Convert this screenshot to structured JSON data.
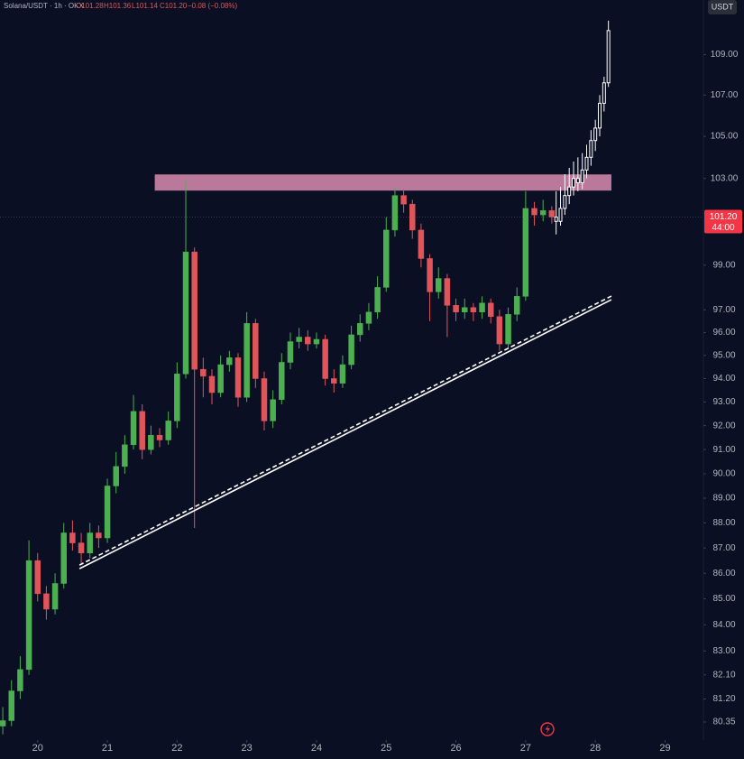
{
  "chart_data": {
    "type": "candlestick",
    "legend": {
      "symbol": "Solana/USDT · 1h · OKX",
      "open": "O101.28",
      "high": "H101.36",
      "low": "L101.14",
      "close": "C101.20",
      "change": "−0.08 (−0.08%)"
    },
    "currency": "USDT",
    "log_scale": true,
    "grid": false,
    "up_color": "#4caf50",
    "down_color": "#e0555a",
    "xlim": [
      19.46,
      29.55
    ],
    "xticks": [
      20,
      21,
      22,
      23,
      24,
      25,
      26,
      27,
      28,
      29
    ],
    "ylim": [
      79.69,
      111.75
    ],
    "yticks": [
      80.35,
      {
        "value": 81.2,
        "label": "81.20"
      },
      {
        "value": 82.1,
        "label": "82.10"
      },
      {
        "value": 83,
        "label": "83.00"
      },
      {
        "value": 84,
        "label": "84.00"
      },
      {
        "value": 85,
        "label": "85.00"
      },
      {
        "value": 86,
        "label": "86.00"
      },
      {
        "value": 87,
        "label": "87.00"
      },
      {
        "value": 88,
        "label": "88.00"
      },
      {
        "value": 89,
        "label": "89.00"
      },
      {
        "value": 90,
        "label": "90.00"
      },
      {
        "value": 91,
        "label": "91.00"
      },
      {
        "value": 92,
        "label": "92.00"
      },
      {
        "value": 93,
        "label": "93.00"
      },
      {
        "value": 94,
        "label": "94.00"
      },
      {
        "value": 95,
        "label": "95.00"
      },
      {
        "value": 96,
        "label": "96.00"
      },
      {
        "value": 97,
        "label": "97.00"
      },
      {
        "value": 99,
        "label": "99.00"
      },
      {
        "value": 103,
        "label": "103.00"
      },
      {
        "value": 105,
        "label": "105.00"
      },
      {
        "value": 107,
        "label": "107.00"
      },
      {
        "value": 109,
        "label": "109.00"
      }
    ],
    "last_price": {
      "value": 101.2,
      "label": "101.20",
      "color": "#f23645"
    },
    "countdown": "44:00",
    "candles": {
      "x": [
        19.5,
        19.625,
        19.75,
        19.875,
        20.0,
        20.125,
        20.25,
        20.375,
        20.5,
        20.625,
        20.75,
        20.875,
        21.0,
        21.125,
        21.25,
        21.375,
        21.5,
        21.625,
        21.75,
        21.875,
        22.0,
        22.125,
        22.25,
        22.375,
        22.5,
        22.625,
        22.75,
        22.875,
        23.0,
        23.125,
        23.25,
        23.375,
        23.5,
        23.625,
        23.75,
        23.875,
        24.0,
        24.125,
        24.25,
        24.375,
        24.5,
        24.625,
        24.75,
        24.875,
        25.0,
        25.125,
        25.25,
        25.375,
        25.5,
        25.625,
        25.75,
        25.875,
        26.0,
        26.125,
        26.25,
        26.375,
        26.5,
        26.625,
        26.75,
        26.875,
        27.0,
        27.125,
        27.25,
        27.375
      ],
      "open": [
        80.2,
        80.4,
        81.5,
        82.3,
        86.5,
        85.2,
        84.6,
        85.6,
        87.6,
        87.2,
        86.8,
        87.6,
        87.4,
        89.5,
        90.3,
        91.2,
        92.6,
        91.0,
        91.6,
        91.4,
        92.2,
        94.2,
        99.6,
        94.4,
        94.1,
        93.4,
        94.6,
        94.9,
        93.2,
        96.4,
        94.0,
        92.2,
        93.1,
        94.7,
        95.6,
        95.8,
        95.5,
        95.7,
        94.0,
        93.8,
        94.6,
        95.9,
        96.4,
        96.9,
        98.0,
        100.6,
        102.2,
        101.8,
        100.6,
        99.3,
        97.8,
        98.4,
        97.2,
        96.9,
        97.1,
        96.9,
        97.3,
        96.7,
        95.5,
        96.8,
        97.6,
        101.6,
        101.3,
        101.5
      ],
      "high": [
        80.9,
        81.9,
        82.8,
        87.3,
        86.8,
        85.5,
        86.0,
        88.0,
        88.1,
        87.6,
        88.0,
        87.9,
        89.8,
        90.9,
        91.6,
        93.3,
        92.9,
        92.0,
        91.9,
        92.6,
        94.7,
        102.9,
        99.8,
        94.9,
        94.4,
        95.0,
        95.2,
        95.1,
        96.9,
        96.6,
        94.3,
        93.5,
        95.1,
        96.0,
        96.2,
        96.1,
        96.0,
        95.9,
        94.4,
        95.0,
        96.3,
        96.8,
        97.3,
        98.5,
        101.2,
        102.6,
        102.5,
        102.0,
        100.9,
        99.5,
        98.9,
        98.6,
        97.5,
        97.5,
        97.3,
        97.6,
        97.5,
        97.0,
        97.1,
        98.0,
        102.4,
        101.9,
        102.0,
        101.7
      ],
      "low": [
        79.9,
        80.2,
        81.2,
        82.1,
        84.9,
        84.2,
        84.4,
        85.4,
        86.9,
        86.4,
        86.6,
        87.0,
        87.2,
        89.2,
        90.0,
        91.0,
        90.6,
        90.8,
        91.1,
        91.2,
        91.9,
        94.0,
        87.8,
        93.2,
        92.9,
        93.2,
        94.3,
        92.8,
        93.0,
        93.6,
        91.8,
        91.9,
        92.9,
        94.4,
        95.3,
        95.2,
        95.3,
        93.7,
        93.4,
        93.6,
        94.4,
        95.6,
        96.1,
        96.6,
        97.8,
        100.3,
        101.4,
        100.2,
        98.9,
        96.5,
        97.5,
        95.8,
        96.5,
        96.6,
        96.5,
        96.6,
        96.4,
        95.2,
        95.3,
        96.5,
        97.4,
        100.8,
        101.0,
        100.9
      ],
      "close": [
        80.4,
        81.5,
        82.3,
        86.5,
        85.2,
        84.6,
        85.6,
        87.6,
        87.2,
        86.8,
        87.6,
        87.4,
        89.5,
        90.3,
        91.2,
        92.6,
        91.0,
        91.6,
        91.4,
        92.2,
        94.2,
        99.6,
        94.4,
        94.1,
        93.4,
        94.6,
        94.9,
        93.2,
        96.4,
        94.0,
        92.2,
        93.1,
        94.7,
        95.6,
        95.8,
        95.5,
        95.7,
        94.0,
        93.8,
        94.6,
        95.9,
        96.4,
        96.9,
        98.0,
        100.6,
        102.2,
        101.8,
        100.6,
        99.3,
        97.8,
        98.4,
        97.2,
        96.9,
        97.1,
        96.9,
        97.3,
        96.7,
        95.5,
        96.8,
        97.6,
        101.6,
        101.3,
        101.5,
        101.2
      ]
    },
    "projection": {
      "color": "#ffffff",
      "x": [
        27.4375,
        27.5,
        27.5625,
        27.625,
        27.6875,
        27.75,
        27.8125,
        27.875,
        27.9375,
        28.0,
        28.0625,
        28.125,
        28.1875
      ],
      "open": [
        101.2,
        101.0,
        101.6,
        102.2,
        102.6,
        103.0,
        102.8,
        103.4,
        104.0,
        104.8,
        105.4,
        106.6,
        107.6
      ],
      "high": [
        102.4,
        102.6,
        103.2,
        103.5,
        103.8,
        104.0,
        104.2,
        104.6,
        105.3,
        105.8,
        107.0,
        107.9,
        110.7
      ],
      "low": [
        100.4,
        100.8,
        101.3,
        101.8,
        102.2,
        102.4,
        102.5,
        103.0,
        103.6,
        104.3,
        105.0,
        106.2,
        107.4
      ],
      "close": [
        101.0,
        101.6,
        102.2,
        102.6,
        103.0,
        102.8,
        103.4,
        104.0,
        104.8,
        105.4,
        106.6,
        107.6,
        110.2
      ]
    },
    "resistance_zone": {
      "color": "#d98bb0",
      "x": [
        21.68,
        28.23
      ],
      "y": [
        102.43,
        103.19
      ]
    },
    "trendline": {
      "color": "#ffffff",
      "x": [
        20.6,
        28.23
      ],
      "y": [
        86.18,
        97.45
      ]
    }
  }
}
